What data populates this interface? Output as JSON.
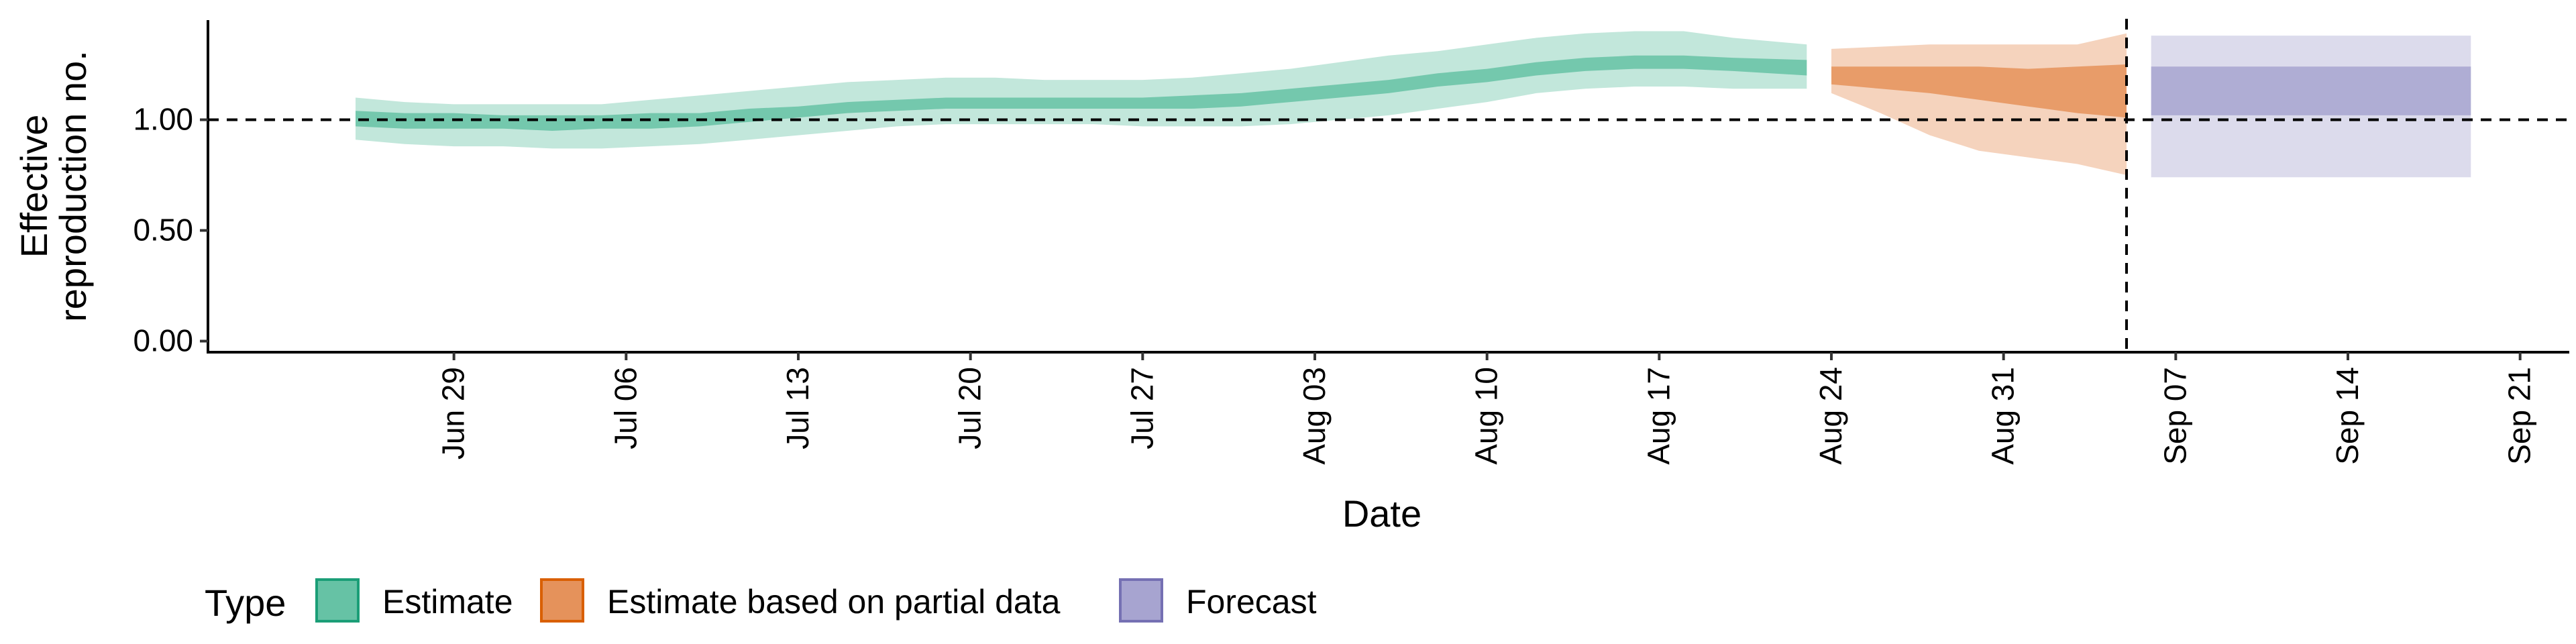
{
  "chart_data": {
    "type": "area",
    "title": "",
    "xlabel": "Date",
    "ylabel_lines": [
      "Effective",
      "reproduction no."
    ],
    "ylim": [
      -0.05,
      1.45
    ],
    "yticks": [
      0.0,
      0.5,
      1.0
    ],
    "ytick_labels": [
      "0.00",
      "0.50",
      "1.00"
    ],
    "xlim": [
      "2020-06-19",
      "2020-09-23"
    ],
    "xticks": [
      "2020-06-29",
      "2020-07-06",
      "2020-07-13",
      "2020-07-20",
      "2020-07-27",
      "2020-08-03",
      "2020-08-10",
      "2020-08-17",
      "2020-08-24",
      "2020-08-31",
      "2020-09-07",
      "2020-09-14",
      "2020-09-21"
    ],
    "xtick_labels": [
      "Jun 29",
      "Jul 06",
      "Jul 13",
      "Jul 20",
      "Jul 27",
      "Aug 03",
      "Aug 10",
      "Aug 17",
      "Aug 24",
      "Aug 31",
      "Sep 07",
      "Sep 14",
      "Sep 21"
    ],
    "reference_hline": 1.0,
    "reference_vline": "2020-09-05",
    "grid": false,
    "legend": {
      "position": "bottom-left",
      "title": "Type",
      "entries": [
        {
          "label": "Estimate",
          "fill": "#66c2a5",
          "stroke": "#1b9e77"
        },
        {
          "label": "Estimate based on partial data",
          "fill": "#e5925b",
          "stroke": "#d95f02"
        },
        {
          "label": "Forecast",
          "fill": "#a7a4d0",
          "stroke": "#7570b3"
        }
      ]
    },
    "series": [
      {
        "name": "Estimate",
        "color": "#66c2a5",
        "x": [
          "2020-06-25",
          "2020-06-27",
          "2020-06-29",
          "2020-07-01",
          "2020-07-03",
          "2020-07-05",
          "2020-07-07",
          "2020-07-09",
          "2020-07-11",
          "2020-07-13",
          "2020-07-15",
          "2020-07-17",
          "2020-07-19",
          "2020-07-21",
          "2020-07-23",
          "2020-07-25",
          "2020-07-27",
          "2020-07-29",
          "2020-07-31",
          "2020-08-02",
          "2020-08-04",
          "2020-08-06",
          "2020-08-08",
          "2020-08-10",
          "2020-08-12",
          "2020-08-14",
          "2020-08-16",
          "2020-08-18",
          "2020-08-20",
          "2020-08-23"
        ],
        "outer_low": [
          0.91,
          0.89,
          0.88,
          0.88,
          0.87,
          0.87,
          0.88,
          0.89,
          0.91,
          0.93,
          0.95,
          0.97,
          0.98,
          0.98,
          0.98,
          0.98,
          0.97,
          0.97,
          0.97,
          0.98,
          1.0,
          1.02,
          1.05,
          1.08,
          1.12,
          1.14,
          1.15,
          1.15,
          1.14,
          1.14
        ],
        "inner_low": [
          0.97,
          0.96,
          0.96,
          0.96,
          0.95,
          0.96,
          0.96,
          0.97,
          0.99,
          1.01,
          1.03,
          1.04,
          1.05,
          1.05,
          1.05,
          1.05,
          1.05,
          1.05,
          1.06,
          1.08,
          1.1,
          1.12,
          1.15,
          1.17,
          1.2,
          1.22,
          1.23,
          1.23,
          1.22,
          1.2
        ],
        "inner_high": [
          1.04,
          1.03,
          1.03,
          1.02,
          1.02,
          1.02,
          1.03,
          1.03,
          1.05,
          1.06,
          1.08,
          1.09,
          1.1,
          1.1,
          1.1,
          1.1,
          1.1,
          1.11,
          1.12,
          1.14,
          1.16,
          1.18,
          1.21,
          1.23,
          1.26,
          1.28,
          1.29,
          1.29,
          1.28,
          1.27
        ],
        "outer_high": [
          1.1,
          1.08,
          1.07,
          1.07,
          1.07,
          1.07,
          1.09,
          1.11,
          1.13,
          1.15,
          1.17,
          1.18,
          1.19,
          1.19,
          1.18,
          1.18,
          1.18,
          1.19,
          1.21,
          1.23,
          1.26,
          1.29,
          1.31,
          1.34,
          1.37,
          1.39,
          1.4,
          1.4,
          1.37,
          1.34
        ]
      },
      {
        "name": "Estimate based on partial data",
        "color": "#e5925b",
        "x": [
          "2020-08-24",
          "2020-08-26",
          "2020-08-28",
          "2020-08-30",
          "2020-09-01",
          "2020-09-03",
          "2020-09-05"
        ],
        "outer_low": [
          1.12,
          1.03,
          0.93,
          0.86,
          0.83,
          0.8,
          0.75
        ],
        "inner_low": [
          1.16,
          1.14,
          1.12,
          1.09,
          1.06,
          1.03,
          1.01
        ],
        "inner_high": [
          1.24,
          1.24,
          1.24,
          1.24,
          1.23,
          1.24,
          1.25
        ],
        "outer_high": [
          1.32,
          1.33,
          1.34,
          1.34,
          1.34,
          1.34,
          1.39
        ]
      },
      {
        "name": "Forecast",
        "color": "#a7a4d0",
        "x": [
          "2020-09-06",
          "2020-09-19"
        ],
        "outer_low": [
          0.74,
          0.74
        ],
        "inner_low": [
          1.02,
          1.02
        ],
        "inner_high": [
          1.24,
          1.24
        ],
        "outer_high": [
          1.38,
          1.38
        ]
      }
    ]
  }
}
